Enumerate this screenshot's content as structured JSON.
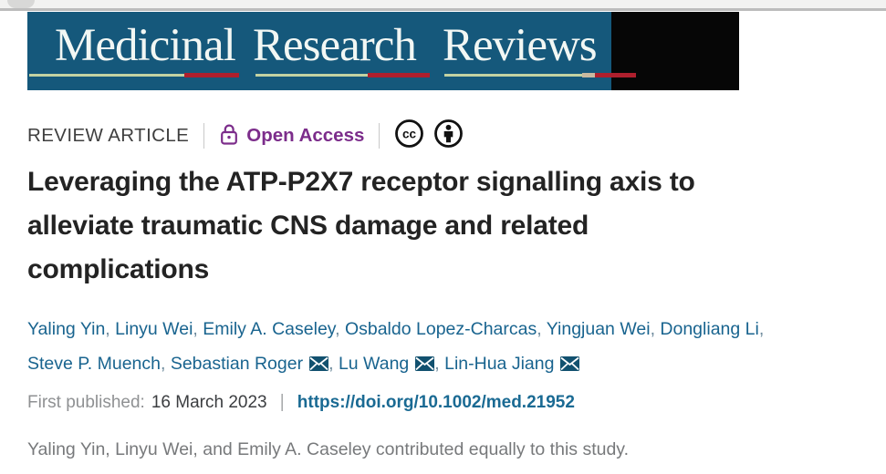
{
  "banner": {
    "journal_title": "Medicinal Research Reviews",
    "words": [
      "Medicinal",
      "Research",
      "Reviews"
    ],
    "bg_color": "#15587b",
    "side_block_color": "#060606",
    "underline_green": "#c3d2a2",
    "underline_red": "#ae1f2d"
  },
  "meta_row": {
    "article_type": "REVIEW ARTICLE",
    "open_access_label": "Open Access",
    "open_access_color": "#7c2d8b",
    "license_icons": [
      "cc-icon",
      "attribution-icon"
    ]
  },
  "article": {
    "title": "Leveraging the ATP-P2X7 receptor signalling axis to alleviate traumatic CNS damage and related complications",
    "title_lines": [
      "Leveraging the ATP-P2X7 receptor signalling axis to",
      "alleviate traumatic CNS damage and related",
      "complications"
    ]
  },
  "authors": {
    "color": "#19648f",
    "separator": ", ",
    "list": [
      {
        "name": "Yaling Yin",
        "email_icon": false
      },
      {
        "name": "Linyu Wei",
        "email_icon": false
      },
      {
        "name": "Emily A. Caseley",
        "email_icon": false
      },
      {
        "name": "Osbaldo Lopez-Charcas",
        "email_icon": false
      },
      {
        "name": "Yingjuan Wei",
        "email_icon": false
      },
      {
        "name": "Dongliang Li",
        "email_icon": false
      },
      {
        "name": "Steve P. Muench",
        "email_icon": false
      },
      {
        "name": "Sebastian Roger",
        "email_icon": true
      },
      {
        "name": "Lu Wang",
        "email_icon": true
      },
      {
        "name": "Lin-Hua Jiang",
        "email_icon": true
      }
    ]
  },
  "publication": {
    "first_published_label": "First published:",
    "date": "16 March 2023",
    "separator": "|",
    "doi_url": "https://doi.org/10.1002/med.21952",
    "doi_color": "#1a6a93"
  },
  "contribution_note": "Yaling Yin, Linyu Wei, and Emily A. Caseley contributed equally to this study."
}
